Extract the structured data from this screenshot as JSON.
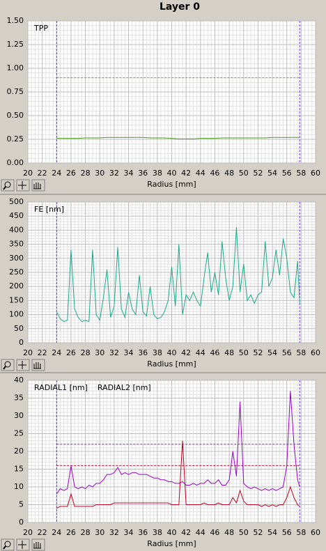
{
  "title": "Layer 0",
  "chart_data": [
    {
      "type": "line",
      "xlabel": "Radius [mm]",
      "legend_position": "top-left",
      "grid": true,
      "x_minor": 4,
      "y_minor": 5,
      "xlim": [
        20,
        60
      ],
      "xticks": [
        20,
        22,
        24,
        26,
        28,
        30,
        32,
        34,
        36,
        38,
        40,
        42,
        44,
        46,
        48,
        50,
        52,
        54,
        56,
        58,
        60
      ],
      "ylim": [
        0,
        1.5
      ],
      "yticks": [
        {
          "value": 0,
          "label": "0.00"
        },
        0.25,
        {
          "value": 0.5,
          "label": "0.50"
        },
        0.75,
        {
          "value": 1,
          "label": "1.00"
        },
        1.25,
        {
          "value": 1.5,
          "label": "1.50"
        }
      ],
      "vlines": [
        24,
        57.8
      ],
      "vline_color": "#6633ee",
      "hlines": [
        {
          "value": 0.9,
          "color": "#6cae2a"
        }
      ],
      "x": [
        24,
        25,
        26,
        27,
        28,
        29,
        30,
        31,
        32,
        33,
        34,
        35,
        36,
        37,
        38,
        39,
        40,
        41,
        42,
        43,
        44,
        45,
        46,
        47,
        48,
        49,
        50,
        51,
        52,
        53,
        54,
        55,
        56,
        57,
        57.8
      ],
      "series": [
        {
          "name": "TPP",
          "color": "#4c9a1a",
          "values": [
            0.26,
            0.26,
            0.26,
            0.26,
            0.265,
            0.265,
            0.265,
            0.27,
            0.27,
            0.27,
            0.27,
            0.27,
            0.27,
            0.265,
            0.265,
            0.265,
            0.26,
            0.255,
            0.255,
            0.255,
            0.26,
            0.26,
            0.26,
            0.265,
            0.265,
            0.265,
            0.265,
            0.265,
            0.265,
            0.265,
            0.27,
            0.27,
            0.27,
            0.27,
            0.27
          ]
        }
      ]
    },
    {
      "type": "line",
      "xlabel": "Radius [mm]",
      "legend_position": "top-left",
      "grid": true,
      "x_minor": 4,
      "y_minor": 5,
      "xlim": [
        20,
        60
      ],
      "xticks": [
        20,
        22,
        24,
        26,
        28,
        30,
        32,
        34,
        36,
        38,
        40,
        42,
        44,
        46,
        48,
        50,
        52,
        54,
        56,
        58,
        60
      ],
      "ylim": [
        0,
        500
      ],
      "yticks": [
        0,
        50,
        100,
        150,
        200,
        250,
        300,
        350,
        400,
        450,
        500
      ],
      "vlines": [
        24,
        57.8
      ],
      "vline_color": "#6633ee",
      "hlines": [],
      "x": [
        24,
        24.5,
        25,
        25.5,
        26,
        26.5,
        27,
        27.5,
        28,
        28.5,
        29,
        29.5,
        30,
        30.5,
        31,
        31.5,
        32,
        32.5,
        33,
        33.5,
        34,
        34.5,
        35,
        35.5,
        36,
        36.5,
        37,
        37.5,
        38,
        38.5,
        39,
        39.5,
        40,
        40.5,
        41,
        41.5,
        42,
        42.5,
        43,
        43.5,
        44,
        44.5,
        45,
        45.5,
        46,
        46.5,
        47,
        47.5,
        48,
        48.5,
        49,
        49.5,
        50,
        50.5,
        51,
        51.5,
        52,
        52.5,
        53,
        53.5,
        54,
        54.5,
        55,
        55.5,
        56,
        56.5,
        57,
        57.5,
        57.8
      ],
      "series": [
        {
          "name": "FE [nm]",
          "color": "#1aaa88",
          "values": [
            110,
            85,
            75,
            80,
            330,
            120,
            90,
            75,
            80,
            75,
            330,
            100,
            80,
            160,
            260,
            90,
            130,
            340,
            120,
            90,
            180,
            120,
            100,
            240,
            110,
            95,
            200,
            100,
            85,
            90,
            110,
            150,
            270,
            130,
            350,
            100,
            170,
            150,
            180,
            150,
            130,
            230,
            320,
            180,
            250,
            170,
            360,
            230,
            150,
            200,
            410,
            180,
            280,
            150,
            170,
            140,
            170,
            180,
            360,
            200,
            230,
            330,
            240,
            370,
            300,
            180,
            160,
            290,
            140
          ]
        }
      ]
    },
    {
      "type": "line",
      "xlabel": "Radius [mm]",
      "legend_position": "top-left",
      "grid": true,
      "x_minor": 4,
      "y_minor": 5,
      "xlim": [
        20,
        60
      ],
      "xticks": [
        20,
        22,
        24,
        26,
        28,
        30,
        32,
        34,
        36,
        38,
        40,
        42,
        44,
        46,
        48,
        50,
        52,
        54,
        56,
        58,
        60
      ],
      "ylim": [
        0,
        40
      ],
      "yticks": [
        0,
        5,
        10,
        15,
        20,
        25,
        30,
        35,
        40
      ],
      "vlines": [
        24,
        57.8
      ],
      "vline_color": "#6633ee",
      "hlines": [
        {
          "value": 22,
          "color": "#a020d0"
        },
        {
          "value": 16,
          "color": "#c01030"
        }
      ],
      "x": [
        24,
        24.5,
        25,
        25.5,
        26,
        26.5,
        27,
        27.5,
        28,
        28.5,
        29,
        29.5,
        30,
        30.5,
        31,
        31.5,
        32,
        32.5,
        33,
        33.5,
        34,
        34.5,
        35,
        35.5,
        36,
        36.5,
        37,
        37.5,
        38,
        38.5,
        39,
        39.5,
        40,
        40.5,
        41,
        41.5,
        42,
        42.5,
        43,
        43.5,
        44,
        44.5,
        45,
        45.5,
        46,
        46.5,
        47,
        47.5,
        48,
        48.5,
        49,
        49.5,
        50,
        50.5,
        51,
        51.5,
        52,
        52.5,
        53,
        53.5,
        54,
        54.5,
        55,
        55.5,
        56,
        56.5,
        57,
        57.5,
        57.8
      ],
      "series": [
        {
          "name": "RADIAL1 [nm]",
          "color": "#9900cc",
          "values": [
            8,
            9.5,
            9,
            9.5,
            16,
            10,
            9.5,
            10,
            9.5,
            10.5,
            10,
            11,
            11,
            12,
            13.5,
            13.5,
            14,
            15.5,
            13.5,
            14,
            13.5,
            14,
            14,
            13.5,
            13.5,
            13.5,
            13,
            12.5,
            12.5,
            12,
            12,
            11.5,
            11.5,
            11,
            11,
            11.5,
            10.5,
            10.5,
            11,
            10.5,
            11,
            11,
            12,
            11,
            11,
            12,
            10.5,
            10.5,
            12,
            20,
            13,
            34,
            11,
            10,
            9.5,
            10,
            9.5,
            9,
            9.5,
            9,
            9.5,
            9,
            9.5,
            10,
            16,
            37,
            22,
            12,
            10
          ]
        },
        {
          "name": "RADIAL2 [nm]",
          "color": "#c00020",
          "values": [
            4,
            4.5,
            4.5,
            4.5,
            8,
            4.5,
            4.5,
            4.5,
            4.5,
            4.5,
            4.5,
            5,
            5,
            5,
            5,
            5,
            5.5,
            5.5,
            5.5,
            5.5,
            5.5,
            5.5,
            5.5,
            5.5,
            5.5,
            5.5,
            5.5,
            5.5,
            5.5,
            5.5,
            5.5,
            5.5,
            5,
            5,
            5,
            23,
            5,
            5,
            5,
            5,
            5,
            5.5,
            5,
            5,
            5,
            5.5,
            5,
            5,
            5,
            7,
            5.5,
            9,
            6,
            5,
            5,
            5,
            5,
            4.5,
            5,
            4.5,
            5,
            4.5,
            5,
            5,
            7,
            10,
            7,
            5,
            4.5
          ]
        }
      ]
    }
  ]
}
